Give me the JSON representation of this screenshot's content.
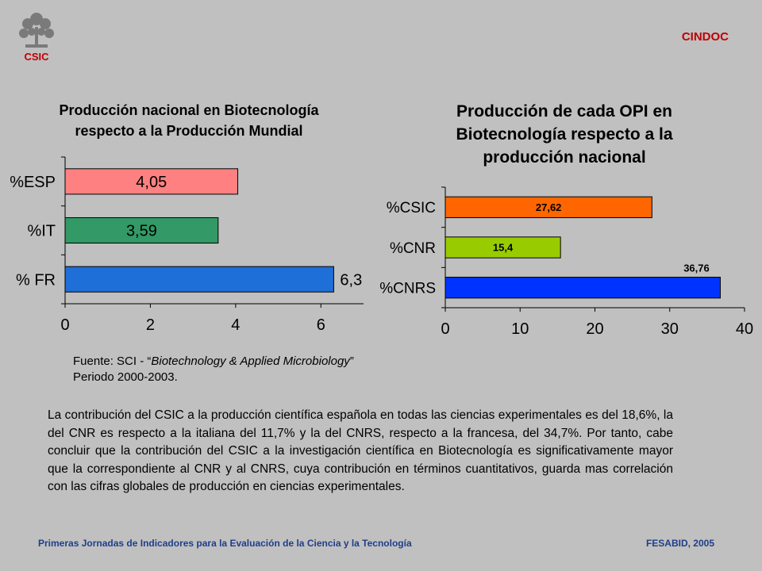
{
  "header": {
    "logo_text": "CSIC",
    "brand": "CINDOC"
  },
  "chart_data": [
    {
      "type": "bar",
      "orientation": "horizontal",
      "title_lines": [
        "Producción nacional en Biotecnología",
        "respecto a la Producción Mundial"
      ],
      "categories": [
        "%ESP",
        "%IT",
        "% FR"
      ],
      "values": [
        4.05,
        3.59,
        6.3
      ],
      "data_labels": [
        "4,05",
        "3,59",
        "6,3"
      ],
      "colors": [
        "#ff8080",
        "#339966",
        "#1f6fd8"
      ],
      "xlim": [
        0,
        7
      ],
      "xticks": [
        0,
        2,
        4,
        6
      ],
      "grid": false
    },
    {
      "type": "bar",
      "orientation": "horizontal",
      "title_lines": [
        "Producción de cada OPI en",
        "Biotecnología respecto a la",
        "producción nacional"
      ],
      "categories": [
        "%CSIC",
        "%CNR",
        "%CNRS"
      ],
      "values": [
        27.62,
        15.4,
        36.76
      ],
      "data_labels": [
        "27,62",
        "15,4",
        "36,76"
      ],
      "colors": [
        "#ff6600",
        "#99cc00",
        "#0033ff"
      ],
      "xlim": [
        0,
        40
      ],
      "xticks": [
        0,
        10,
        20,
        30,
        40
      ],
      "grid": false
    }
  ],
  "source": {
    "prefix": "Fuente: SCI - “",
    "journal": "Biotechnology & Applied Microbiology",
    "suffix": "”",
    "period": "Periodo 2000-2003."
  },
  "paragraph": "La contribución del CSIC a la producción científica española en todas las ciencias experimentales es del 18,6%, la del CNR es respecto a la italiana del 11,7% y la del CNRS, respecto a la francesa, del 34,7%. Por tanto, cabe concluir que la contribución del CSIC a la investigación científica en Biotecnología es significativamente mayor que la correspondiente al CNR y al CNRS, cuya contribución en términos cuantitativos, guarda mas correlación con las cifras globales de producción en ciencias experimentales.",
  "footer": {
    "left": "Primeras Jornadas de Indicadores para la Evaluación de la Ciencia y la Tecnología",
    "right": "FESABID, 2005"
  }
}
